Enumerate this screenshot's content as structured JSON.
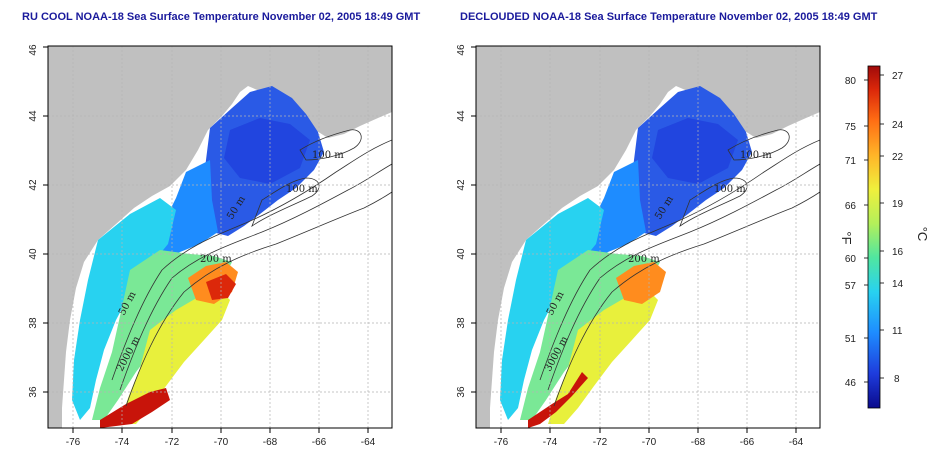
{
  "panels": [
    {
      "title": "RU COOL NOAA-18 Sea Surface Temperature November 02, 2005 18:49 GMT",
      "lon_ticks": [
        "-76",
        "-74",
        "-72",
        "-70",
        "-68",
        "-66",
        "-64"
      ],
      "lat_ticks": [
        "36",
        "38",
        "40",
        "42",
        "44",
        "46"
      ],
      "contour_labels": [
        "100 m",
        "100 m",
        "50 m",
        "200 m",
        "50 m",
        "2000 m"
      ]
    },
    {
      "title": "DECLOUDED NOAA-18 Sea Surface Temperature November 02, 2005 18:49 GMT",
      "lon_ticks": [
        "-76",
        "-74",
        "-72",
        "-70",
        "-68",
        "-66",
        "-64"
      ],
      "lat_ticks": [
        "36",
        "38",
        "40",
        "42",
        "44",
        "46"
      ],
      "contour_labels": [
        "100 m",
        "100 m",
        "50 m",
        "200 m",
        "50 m",
        "3000 m"
      ]
    }
  ],
  "colorbar": {
    "fahrenheit_label": "°F",
    "celsius_label": "°C",
    "fahrenheit_ticks": [
      "80",
      "75",
      "71",
      "66",
      "60",
      "57",
      "51",
      "46"
    ],
    "celsius_ticks": [
      "27",
      "24",
      "22",
      "19",
      "16",
      "14",
      "11",
      "8"
    ],
    "colors": [
      "#0a0a8c",
      "#1e3cdc",
      "#1e8cff",
      "#28d2f0",
      "#50e6a0",
      "#b4f05a",
      "#f0f03c",
      "#ffb428",
      "#ff6e14",
      "#dc280a",
      "#a00a0a"
    ]
  },
  "colors": {
    "land": "#c0c0c0",
    "title": "#1a1a9c",
    "contour": "#333333",
    "grid": "#b4b4b4"
  }
}
